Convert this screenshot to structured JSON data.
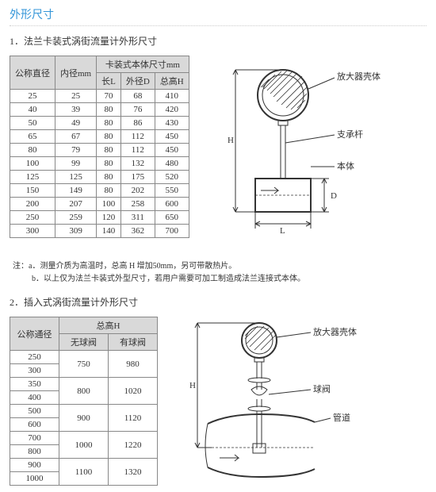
{
  "page_title": "外形尺寸",
  "section1": {
    "heading": "1．法兰卡装式涡街流量计外形尺寸",
    "table": {
      "header_grouped": "卡装式本体尺寸mm",
      "cols": [
        "公称直径",
        "内径mm",
        "长L",
        "外径D",
        "总高H"
      ],
      "rows": [
        [
          "25",
          "25",
          "70",
          "68",
          "410"
        ],
        [
          "40",
          "39",
          "80",
          "76",
          "420"
        ],
        [
          "50",
          "49",
          "80",
          "86",
          "430"
        ],
        [
          "65",
          "67",
          "80",
          "112",
          "450"
        ],
        [
          "80",
          "79",
          "80",
          "112",
          "450"
        ],
        [
          "100",
          "99",
          "80",
          "132",
          "480"
        ],
        [
          "125",
          "125",
          "80",
          "175",
          "520"
        ],
        [
          "150",
          "149",
          "80",
          "202",
          "550"
        ],
        [
          "200",
          "207",
          "100",
          "258",
          "600"
        ],
        [
          "250",
          "259",
          "120",
          "311",
          "650"
        ],
        [
          "300",
          "309",
          "140",
          "362",
          "700"
        ]
      ]
    },
    "note_a": "注：a．测量介质为高温时，总高 H 增加50mm，另可带散热片。",
    "note_b": "b．以上仅为法兰卡装式外型尺寸，若用户需要可加工制造成法兰连接式本体。",
    "diagram_labels": {
      "amp_shell": "放大器壳体",
      "support": "支承杆",
      "body": "本体",
      "H": "H",
      "L": "L",
      "D": "D"
    }
  },
  "section2": {
    "heading": "2．插入式涡街流量计外形尺寸",
    "table": {
      "header_grouped": "总高H",
      "cols": [
        "公称通径",
        "无球阀",
        "有球阀"
      ],
      "rows_raw": [
        [
          "250",
          "750",
          "980"
        ],
        [
          "300",
          "750",
          "980"
        ],
        [
          "350",
          "800",
          "1020"
        ],
        [
          "400",
          "800",
          "1020"
        ],
        [
          "500",
          "900",
          "1120"
        ],
        [
          "600",
          "900",
          "1120"
        ],
        [
          "700",
          "1000",
          "1220"
        ],
        [
          "800",
          "1000",
          "1220"
        ],
        [
          "900",
          "1100",
          "1320"
        ],
        [
          "1000",
          "1100",
          "1320"
        ]
      ]
    },
    "diagram_labels": {
      "amp_shell": "放大器壳体",
      "ball_valve": "球阀",
      "pipe": "管道",
      "H": "H"
    }
  }
}
